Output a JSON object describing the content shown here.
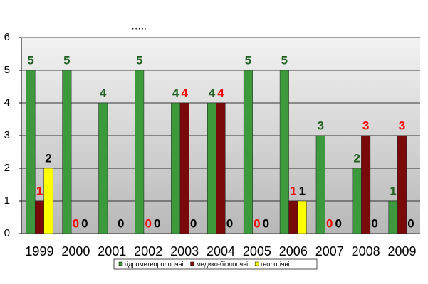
{
  "chart_data": {
    "type": "bar",
    "title": "…..",
    "categories": [
      "1999",
      "2000",
      "2001",
      "2002",
      "2003",
      "2004",
      "2005",
      "2006",
      "2007",
      "2008",
      "2009"
    ],
    "series": [
      {
        "name": "гідрометеорологічні",
        "color": "#3c9a3c",
        "label_color": "#1f5f1f",
        "values": [
          5,
          5,
          4,
          5,
          4,
          4,
          5,
          5,
          3,
          2,
          1
        ]
      },
      {
        "name": "медико-біологічні",
        "color": "#7a0a0a",
        "label_color": "#ff0000",
        "values": [
          1,
          0,
          null,
          0,
          4,
          4,
          0,
          1,
          0,
          3,
          3
        ]
      },
      {
        "name": "геологічні",
        "color": "#ffff00",
        "label_color": "#000000",
        "values": [
          2,
          0,
          0,
          0,
          0,
          0,
          0,
          1,
          0,
          0,
          0
        ]
      }
    ],
    "ylim": [
      0,
      6
    ],
    "yticks": [
      0,
      1,
      2,
      3,
      4,
      5,
      6
    ],
    "grid": true
  }
}
